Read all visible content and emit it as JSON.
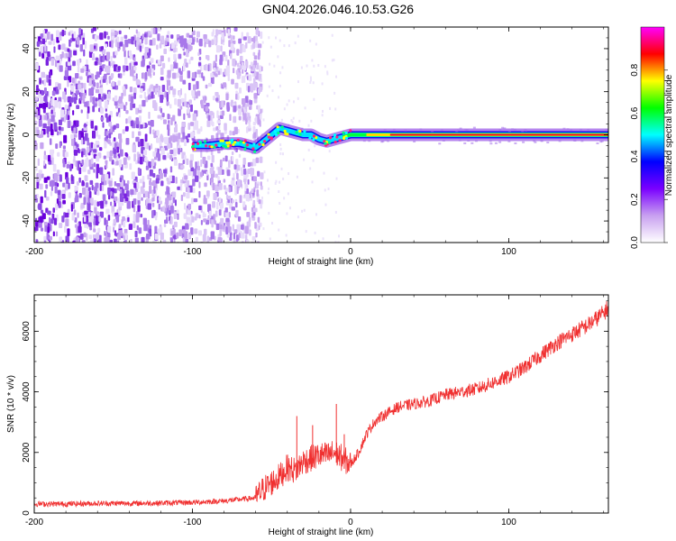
{
  "title": "GN04.2026.046.10.53.G26",
  "chart_data": [
    {
      "type": "heatmap",
      "title": "GN04.2026.046.10.53.G26",
      "xlabel": "Height of straight line (km)",
      "ylabel": "Frequency (Hz)",
      "xlim": [
        -200,
        163
      ],
      "ylim": [
        -50,
        50
      ],
      "xticks": [
        "-200",
        "-100",
        "0",
        "100"
      ],
      "yticks": [
        "-40",
        "-20",
        "0",
        "20",
        "40"
      ],
      "colorbar": {
        "label": "Normalized spectral amplitude",
        "range": [
          0,
          1
        ],
        "ticks": [
          "0.0",
          "0.2",
          "0.4",
          "0.6",
          "0.8"
        ],
        "colors": [
          "#ffffff",
          "#c8a0f0",
          "#7a00ff",
          "#0000ff",
          "#00ffff",
          "#00ff00",
          "#ffff00",
          "#ff0000",
          "#ff00ff"
        ]
      },
      "ridge": [
        {
          "x": -100,
          "freq": -5
        },
        {
          "x": -90,
          "freq": -5
        },
        {
          "x": -80,
          "freq": -4
        },
        {
          "x": -70,
          "freq": -4
        },
        {
          "x": -60,
          "freq": -6
        },
        {
          "x": -55,
          "freq": -3
        },
        {
          "x": -50,
          "freq": 0
        },
        {
          "x": -45,
          "freq": 3
        },
        {
          "x": -40,
          "freq": 2
        },
        {
          "x": -30,
          "freq": 0
        },
        {
          "x": -25,
          "freq": 0
        },
        {
          "x": -20,
          "freq": -2
        },
        {
          "x": -15,
          "freq": -3
        },
        {
          "x": -10,
          "freq": -2
        },
        {
          "x": -5,
          "freq": -1
        },
        {
          "x": 0,
          "freq": 0
        },
        {
          "x": 20,
          "freq": 0
        },
        {
          "x": 163,
          "freq": 0
        }
      ],
      "noise_region": {
        "x_from": -200,
        "x_to": -57
      }
    },
    {
      "type": "line",
      "xlabel": "Height of straight line (km)",
      "ylabel": "SNR (10 * v/v)",
      "xlim": [
        -200,
        163
      ],
      "ylim": [
        0,
        7200
      ],
      "xticks": [
        "-200",
        "-100",
        "0",
        "100"
      ],
      "yticks": [
        "0",
        "2000",
        "4000",
        "6000"
      ],
      "color": "#f03030",
      "series": [
        {
          "x": [
            -200,
            -180,
            -160,
            -140,
            -120,
            -100,
            -80,
            -60,
            -55,
            -50,
            -45,
            -40,
            -35,
            -30,
            -25,
            -20,
            -15,
            -10,
            -5,
            0,
            5,
            10,
            15,
            20,
            30,
            40,
            50,
            60,
            70,
            80,
            90,
            100,
            110,
            120,
            130,
            140,
            150,
            160,
            163
          ],
          "y": [
            300,
            300,
            320,
            320,
            330,
            350,
            400,
            500,
            800,
            1000,
            1200,
            1500,
            1400,
            1700,
            1800,
            1900,
            1900,
            2000,
            1800,
            1600,
            2000,
            2600,
            3000,
            3200,
            3500,
            3600,
            3700,
            3900,
            4000,
            4100,
            4300,
            4500,
            4800,
            5200,
            5600,
            5900,
            6200,
            6600,
            6800
          ]
        }
      ],
      "spikes": [
        {
          "x": -34,
          "y": 3200
        },
        {
          "x": -24,
          "y": 2900
        },
        {
          "x": -9,
          "y": 3600
        },
        {
          "x": -4,
          "y": 2600
        }
      ]
    }
  ]
}
